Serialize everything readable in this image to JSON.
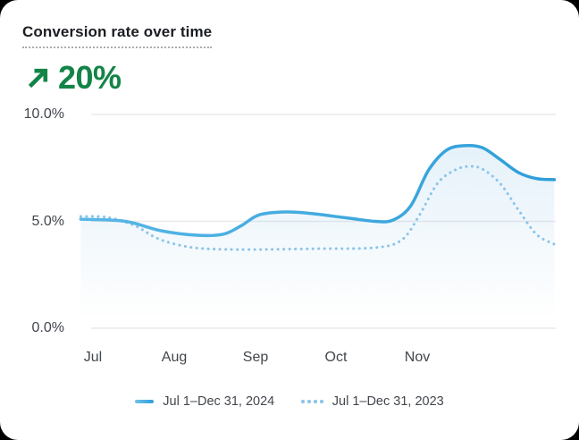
{
  "card": {
    "title": "Conversion rate over time"
  },
  "stat": {
    "value": "20%",
    "direction": "up",
    "color": "#128447"
  },
  "chart_data": {
    "type": "line",
    "title": "Conversion rate over time",
    "xlabel": "",
    "ylabel": "",
    "ylim": [
      0,
      10
    ],
    "y_ticks_topdown": [
      "10.0%",
      "5.0%",
      "0.0%"
    ],
    "x_ticks": [
      "Jul",
      "Aug",
      "Sep",
      "Oct",
      "Nov"
    ],
    "x_unit": "months from Jul 1",
    "grid": "horizontal",
    "legend_position": "bottom-center",
    "colors": {
      "line_2024": "#38a5de",
      "line_2023": "#8cc3e9",
      "gridline": "#e9eaeb",
      "axis_text": "#42474d",
      "area_fill": "#55a6db"
    },
    "series": [
      {
        "name": "Jul 1–Dec 31, 2024",
        "style": "solid",
        "color": "#38a5de",
        "points": [
          [
            -0.15,
            5.1
          ],
          [
            0.4,
            5.0
          ],
          [
            0.84,
            4.56
          ],
          [
            1.28,
            4.35
          ],
          [
            1.61,
            4.4
          ],
          [
            1.83,
            4.8
          ],
          [
            2.05,
            5.3
          ],
          [
            2.38,
            5.44
          ],
          [
            2.71,
            5.36
          ],
          [
            3.15,
            5.15
          ],
          [
            3.48,
            5.0
          ],
          [
            3.7,
            5.06
          ],
          [
            3.92,
            5.73
          ],
          [
            4.14,
            7.4
          ],
          [
            4.36,
            8.33
          ],
          [
            4.58,
            8.54
          ],
          [
            4.8,
            8.45
          ],
          [
            5.02,
            7.9
          ],
          [
            5.25,
            7.28
          ],
          [
            5.47,
            7.0
          ],
          [
            5.69,
            6.95
          ]
        ]
      },
      {
        "name": "Jul 1–Dec 31, 2023",
        "style": "dotted",
        "color": "#8cc3e9",
        "points": [
          [
            -0.15,
            5.23
          ],
          [
            0.18,
            5.19
          ],
          [
            0.51,
            4.81
          ],
          [
            0.78,
            4.23
          ],
          [
            1.06,
            3.89
          ],
          [
            1.39,
            3.72
          ],
          [
            1.94,
            3.68
          ],
          [
            2.71,
            3.72
          ],
          [
            3.48,
            3.77
          ],
          [
            3.81,
            4.14
          ],
          [
            4.03,
            5.31
          ],
          [
            4.25,
            6.78
          ],
          [
            4.47,
            7.41
          ],
          [
            4.64,
            7.57
          ],
          [
            4.8,
            7.45
          ],
          [
            5.02,
            6.78
          ],
          [
            5.25,
            5.52
          ],
          [
            5.47,
            4.39
          ],
          [
            5.69,
            3.93
          ]
        ]
      }
    ]
  }
}
